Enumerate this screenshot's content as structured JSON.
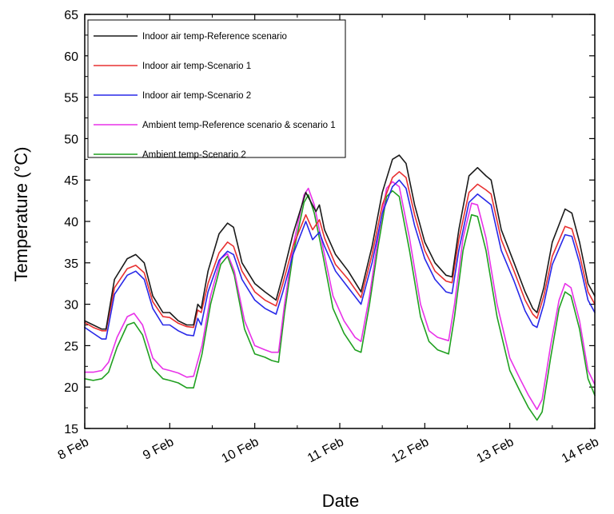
{
  "chart_data": {
    "type": "line",
    "xlabel": "Date",
    "ylabel": "Temperature (°C)",
    "xlim": [
      0,
      6
    ],
    "ylim": [
      15,
      65
    ],
    "x_ticks": [
      {
        "value": 0,
        "label": "8 Feb"
      },
      {
        "value": 1,
        "label": "9 Feb"
      },
      {
        "value": 2,
        "label": "10 Feb"
      },
      {
        "value": 3,
        "label": "11 Feb"
      },
      {
        "value": 4,
        "label": "12 Feb"
      },
      {
        "value": 5,
        "label": "13 Feb"
      },
      {
        "value": 6,
        "label": "14 Feb"
      }
    ],
    "y_ticks": [
      15,
      20,
      25,
      30,
      35,
      40,
      45,
      50,
      55,
      60,
      65
    ],
    "legend_position": "top-left",
    "series": [
      {
        "name": "Indoor air temp-Reference scenario",
        "color": "#1a1a1a",
        "points": [
          [
            0,
            28
          ],
          [
            0.1,
            27.5
          ],
          [
            0.2,
            27
          ],
          [
            0.25,
            27
          ],
          [
            0.35,
            33
          ],
          [
            0.5,
            35.5
          ],
          [
            0.6,
            36
          ],
          [
            0.7,
            35
          ],
          [
            0.8,
            31
          ],
          [
            0.92,
            29
          ],
          [
            1.0,
            29
          ],
          [
            1.1,
            28
          ],
          [
            1.2,
            27.5
          ],
          [
            1.28,
            27.5
          ],
          [
            1.33,
            30
          ],
          [
            1.37,
            29.5
          ],
          [
            1.45,
            34
          ],
          [
            1.58,
            38.5
          ],
          [
            1.68,
            39.8
          ],
          [
            1.75,
            39.3
          ],
          [
            1.85,
            35
          ],
          [
            2.0,
            32.5
          ],
          [
            2.12,
            31.5
          ],
          [
            2.25,
            30.5
          ],
          [
            2.33,
            33.5
          ],
          [
            2.45,
            38.5
          ],
          [
            2.6,
            43.5
          ],
          [
            2.72,
            41.2
          ],
          [
            2.76,
            42
          ],
          [
            2.82,
            39
          ],
          [
            2.95,
            36
          ],
          [
            3.1,
            34
          ],
          [
            3.25,
            31.5
          ],
          [
            3.38,
            37
          ],
          [
            3.5,
            43.5
          ],
          [
            3.62,
            47.5
          ],
          [
            3.7,
            48
          ],
          [
            3.78,
            47
          ],
          [
            3.88,
            42
          ],
          [
            4.0,
            37.5
          ],
          [
            4.12,
            35
          ],
          [
            4.25,
            33.5
          ],
          [
            4.32,
            33.3
          ],
          [
            4.4,
            39
          ],
          [
            4.52,
            45.5
          ],
          [
            4.62,
            46.5
          ],
          [
            4.72,
            45.5
          ],
          [
            4.78,
            45
          ],
          [
            4.9,
            39
          ],
          [
            5.05,
            35
          ],
          [
            5.18,
            31.5
          ],
          [
            5.27,
            29.5
          ],
          [
            5.32,
            29
          ],
          [
            5.4,
            32
          ],
          [
            5.5,
            37.5
          ],
          [
            5.65,
            41.5
          ],
          [
            5.73,
            41
          ],
          [
            5.82,
            37.5
          ],
          [
            5.92,
            32.5
          ],
          [
            6.0,
            31
          ]
        ]
      },
      {
        "name": "Indoor air temp-Scenario 1",
        "color": "#e83030",
        "points": [
          [
            0,
            27.8
          ],
          [
            0.1,
            27.2
          ],
          [
            0.2,
            26.8
          ],
          [
            0.25,
            26.8
          ],
          [
            0.35,
            32
          ],
          [
            0.5,
            34.3
          ],
          [
            0.6,
            34.7
          ],
          [
            0.7,
            33.8
          ],
          [
            0.8,
            30.3
          ],
          [
            0.92,
            28.5
          ],
          [
            1.0,
            28.4
          ],
          [
            1.1,
            27.7
          ],
          [
            1.2,
            27.3
          ],
          [
            1.28,
            27.2
          ],
          [
            1.33,
            29.3
          ],
          [
            1.37,
            29
          ],
          [
            1.45,
            32.5
          ],
          [
            1.58,
            36.2
          ],
          [
            1.68,
            37.5
          ],
          [
            1.75,
            37
          ],
          [
            1.85,
            34
          ],
          [
            2.0,
            31.5
          ],
          [
            2.12,
            30.5
          ],
          [
            2.25,
            29.8
          ],
          [
            2.33,
            32.5
          ],
          [
            2.45,
            37
          ],
          [
            2.6,
            40.8
          ],
          [
            2.68,
            39
          ],
          [
            2.76,
            40.2
          ],
          [
            2.82,
            38
          ],
          [
            2.95,
            34.8
          ],
          [
            3.1,
            33
          ],
          [
            3.25,
            30.8
          ],
          [
            3.38,
            36
          ],
          [
            3.5,
            42
          ],
          [
            3.62,
            45.3
          ],
          [
            3.7,
            46
          ],
          [
            3.78,
            45.3
          ],
          [
            3.88,
            40.8
          ],
          [
            4.0,
            36.5
          ],
          [
            4.12,
            34
          ],
          [
            4.25,
            32.8
          ],
          [
            4.32,
            32.6
          ],
          [
            4.4,
            37.8
          ],
          [
            4.52,
            43.5
          ],
          [
            4.62,
            44.5
          ],
          [
            4.72,
            43.8
          ],
          [
            4.78,
            43.3
          ],
          [
            4.9,
            37.8
          ],
          [
            5.05,
            34
          ],
          [
            5.18,
            30.5
          ],
          [
            5.27,
            28.8
          ],
          [
            5.32,
            28.3
          ],
          [
            5.4,
            31
          ],
          [
            5.5,
            35.8
          ],
          [
            5.65,
            39.4
          ],
          [
            5.73,
            39.1
          ],
          [
            5.82,
            36
          ],
          [
            5.92,
            31.5
          ],
          [
            6.0,
            30
          ]
        ]
      },
      {
        "name": "Indoor air temp-Scenario 2",
        "color": "#2828e8",
        "points": [
          [
            0,
            27.2
          ],
          [
            0.1,
            26.5
          ],
          [
            0.2,
            25.8
          ],
          [
            0.25,
            25.8
          ],
          [
            0.35,
            31.2
          ],
          [
            0.5,
            33.5
          ],
          [
            0.6,
            34
          ],
          [
            0.7,
            33
          ],
          [
            0.8,
            29.5
          ],
          [
            0.92,
            27.5
          ],
          [
            1.0,
            27.5
          ],
          [
            1.1,
            26.8
          ],
          [
            1.2,
            26.3
          ],
          [
            1.28,
            26.2
          ],
          [
            1.33,
            28.3
          ],
          [
            1.37,
            27.5
          ],
          [
            1.45,
            31.5
          ],
          [
            1.58,
            35.3
          ],
          [
            1.68,
            36.4
          ],
          [
            1.75,
            36
          ],
          [
            1.85,
            33
          ],
          [
            2.0,
            30.5
          ],
          [
            2.12,
            29.5
          ],
          [
            2.25,
            28.8
          ],
          [
            2.33,
            31.5
          ],
          [
            2.45,
            36
          ],
          [
            2.6,
            40
          ],
          [
            2.68,
            37.8
          ],
          [
            2.76,
            38.7
          ],
          [
            2.82,
            37
          ],
          [
            2.95,
            34
          ],
          [
            3.1,
            32
          ],
          [
            3.25,
            30
          ],
          [
            3.38,
            35
          ],
          [
            3.5,
            41
          ],
          [
            3.62,
            44.2
          ],
          [
            3.7,
            45
          ],
          [
            3.78,
            44
          ],
          [
            3.88,
            39.5
          ],
          [
            4.0,
            35.5
          ],
          [
            4.12,
            33
          ],
          [
            4.25,
            31.5
          ],
          [
            4.32,
            31.3
          ],
          [
            4.4,
            36.5
          ],
          [
            4.52,
            42.3
          ],
          [
            4.62,
            43.3
          ],
          [
            4.72,
            42.5
          ],
          [
            4.78,
            42
          ],
          [
            4.9,
            36.5
          ],
          [
            5.05,
            32.8
          ],
          [
            5.18,
            29.2
          ],
          [
            5.27,
            27.5
          ],
          [
            5.32,
            27.2
          ],
          [
            5.4,
            30
          ],
          [
            5.5,
            34.8
          ],
          [
            5.65,
            38.4
          ],
          [
            5.73,
            38.2
          ],
          [
            5.82,
            35
          ],
          [
            5.92,
            30.5
          ],
          [
            6.0,
            29
          ]
        ]
      },
      {
        "name": "Ambient temp-Reference scenario & scenario 1",
        "color": "#e832e8",
        "points": [
          [
            0,
            21.8
          ],
          [
            0.1,
            21.8
          ],
          [
            0.2,
            22
          ],
          [
            0.28,
            23
          ],
          [
            0.38,
            26
          ],
          [
            0.5,
            28.5
          ],
          [
            0.58,
            28.9
          ],
          [
            0.68,
            27.5
          ],
          [
            0.8,
            23.5
          ],
          [
            0.92,
            22.2
          ],
          [
            1.0,
            22
          ],
          [
            1.1,
            21.7
          ],
          [
            1.2,
            21.2
          ],
          [
            1.28,
            21.3
          ],
          [
            1.38,
            25
          ],
          [
            1.48,
            31
          ],
          [
            1.6,
            35.5
          ],
          [
            1.68,
            36.1
          ],
          [
            1.76,
            34
          ],
          [
            1.88,
            28
          ],
          [
            2.0,
            25
          ],
          [
            2.12,
            24.5
          ],
          [
            2.2,
            24.2
          ],
          [
            2.28,
            24.2
          ],
          [
            2.35,
            30
          ],
          [
            2.45,
            37
          ],
          [
            2.58,
            43.2
          ],
          [
            2.63,
            44
          ],
          [
            2.7,
            42
          ],
          [
            2.8,
            37
          ],
          [
            2.92,
            31
          ],
          [
            3.05,
            28
          ],
          [
            3.18,
            26
          ],
          [
            3.25,
            25.5
          ],
          [
            3.35,
            31
          ],
          [
            3.45,
            38
          ],
          [
            3.55,
            44
          ],
          [
            3.62,
            44.8
          ],
          [
            3.7,
            44.2
          ],
          [
            3.82,
            38
          ],
          [
            3.95,
            30
          ],
          [
            4.05,
            26.8
          ],
          [
            4.15,
            26
          ],
          [
            4.28,
            25.6
          ],
          [
            4.35,
            30
          ],
          [
            4.45,
            38
          ],
          [
            4.55,
            42.2
          ],
          [
            4.62,
            42
          ],
          [
            4.72,
            38
          ],
          [
            4.85,
            30
          ],
          [
            5.0,
            23.5
          ],
          [
            5.12,
            21
          ],
          [
            5.22,
            19
          ],
          [
            5.32,
            17.3
          ],
          [
            5.38,
            18.5
          ],
          [
            5.48,
            25
          ],
          [
            5.58,
            30.5
          ],
          [
            5.65,
            32.5
          ],
          [
            5.72,
            32
          ],
          [
            5.82,
            28
          ],
          [
            5.92,
            22
          ],
          [
            6.0,
            20.3
          ]
        ]
      },
      {
        "name": "Ambient temp-Scenario 2",
        "color": "#20a020",
        "points": [
          [
            0,
            21
          ],
          [
            0.1,
            20.8
          ],
          [
            0.2,
            21
          ],
          [
            0.28,
            21.8
          ],
          [
            0.38,
            24.8
          ],
          [
            0.5,
            27.5
          ],
          [
            0.58,
            27.8
          ],
          [
            0.68,
            26.3
          ],
          [
            0.8,
            22.3
          ],
          [
            0.92,
            21
          ],
          [
            1.0,
            20.8
          ],
          [
            1.1,
            20.5
          ],
          [
            1.2,
            19.9
          ],
          [
            1.28,
            19.9
          ],
          [
            1.38,
            24
          ],
          [
            1.48,
            30
          ],
          [
            1.6,
            34.8
          ],
          [
            1.68,
            35.8
          ],
          [
            1.76,
            33.5
          ],
          [
            1.88,
            27
          ],
          [
            2.0,
            24
          ],
          [
            2.12,
            23.6
          ],
          [
            2.2,
            23.2
          ],
          [
            2.28,
            23
          ],
          [
            2.35,
            29
          ],
          [
            2.45,
            36
          ],
          [
            2.58,
            42.3
          ],
          [
            2.63,
            43.2
          ],
          [
            2.7,
            41
          ],
          [
            2.8,
            36
          ],
          [
            2.92,
            29.5
          ],
          [
            3.05,
            26.5
          ],
          [
            3.18,
            24.5
          ],
          [
            3.25,
            24.2
          ],
          [
            3.35,
            30
          ],
          [
            3.45,
            37
          ],
          [
            3.55,
            43
          ],
          [
            3.62,
            43.7
          ],
          [
            3.7,
            43
          ],
          [
            3.82,
            36.5
          ],
          [
            3.95,
            28.5
          ],
          [
            4.05,
            25.5
          ],
          [
            4.15,
            24.5
          ],
          [
            4.28,
            24
          ],
          [
            4.35,
            28.5
          ],
          [
            4.45,
            36.5
          ],
          [
            4.55,
            40.8
          ],
          [
            4.62,
            40.6
          ],
          [
            4.72,
            36.5
          ],
          [
            4.85,
            28.5
          ],
          [
            5.0,
            22
          ],
          [
            5.12,
            19.5
          ],
          [
            5.22,
            17.5
          ],
          [
            5.32,
            16
          ],
          [
            5.38,
            17
          ],
          [
            5.48,
            23.5
          ],
          [
            5.58,
            29.5
          ],
          [
            5.65,
            31.5
          ],
          [
            5.72,
            31
          ],
          [
            5.82,
            27
          ],
          [
            5.92,
            21
          ],
          [
            6.0,
            19
          ]
        ]
      }
    ]
  }
}
